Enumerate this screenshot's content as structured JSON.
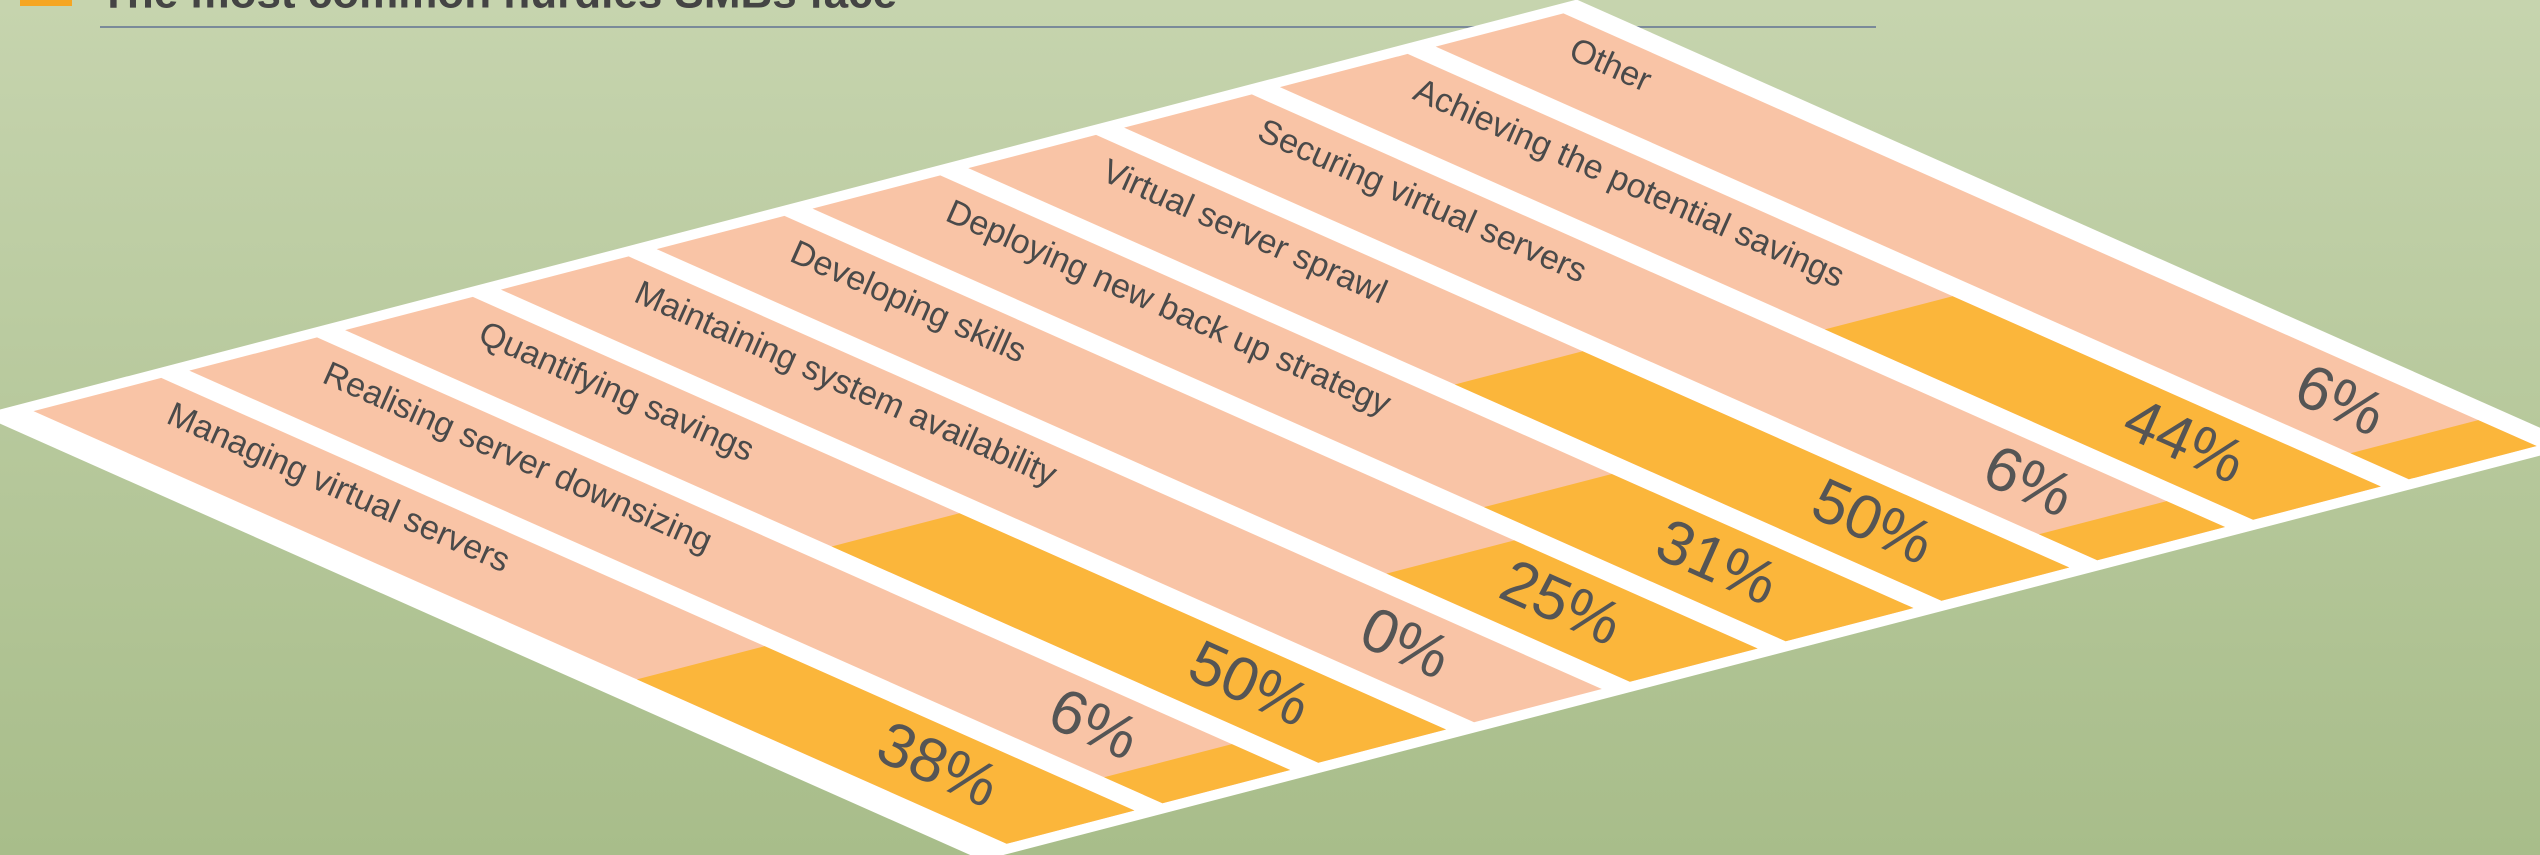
{
  "chart_data": {
    "type": "bar",
    "title": "The most common hurdles SMBs face",
    "categories": [
      "Managing virtual servers",
      "Realising server downsizing",
      "Quantifying savings",
      "Maintaining system availability",
      "Developing skills",
      "Deploying new back up strategy",
      "Virtual server sprawl",
      "Securing virtual servers",
      "Achieving the potential savings",
      "Other"
    ],
    "values": [
      38,
      6,
      50,
      0,
      25,
      31,
      50,
      6,
      44,
      6
    ],
    "value_labels": [
      "38%",
      "6%",
      "50%",
      "0%",
      "25%",
      "31%",
      "50%",
      "6%",
      "44%",
      "6%"
    ],
    "color": "#fbb63b"
  }
}
